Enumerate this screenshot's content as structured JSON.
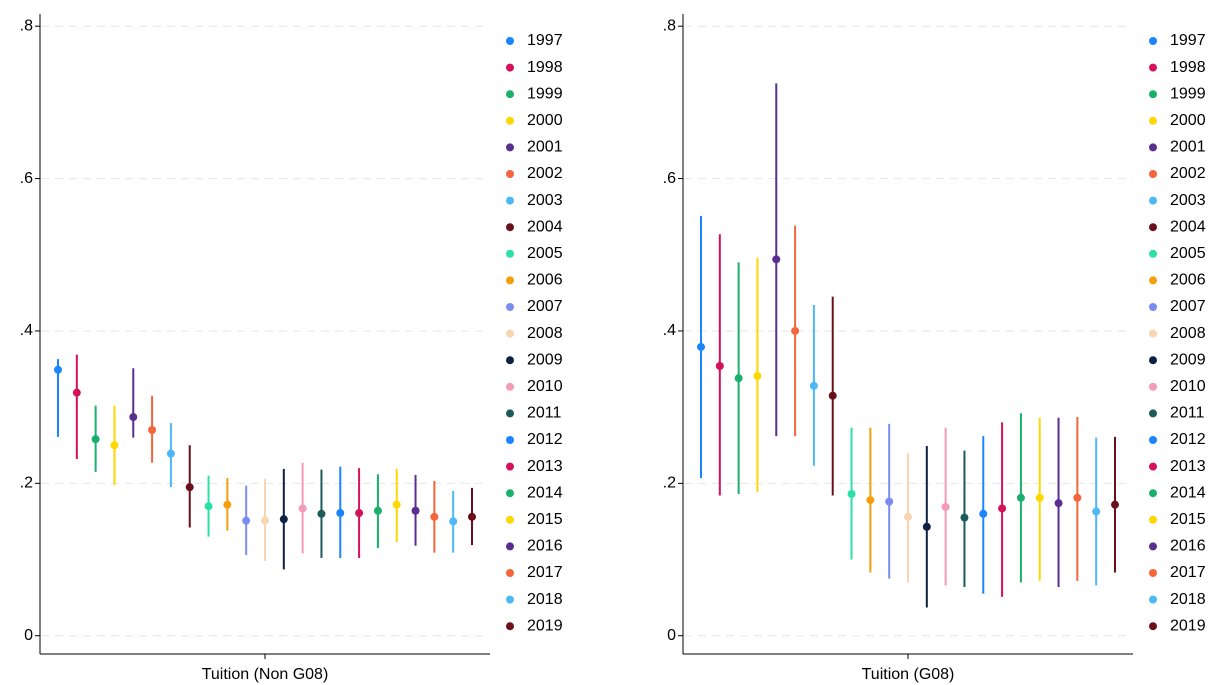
{
  "chart_data": [
    {
      "type": "errorbar",
      "categories": [
        "Tuition (Non G08)"
      ],
      "ylim": [
        -0.024,
        0.816
      ],
      "yticks": [
        0,
        {
          "value": 0.2,
          "label": ".2"
        },
        {
          "value": 0.4,
          "label": ".4"
        },
        {
          "value": 0.6,
          "label": ".6"
        },
        {
          "value": 0.8,
          "label": ".8"
        }
      ],
      "grid": true,
      "legend": "right",
      "series": [
        {
          "name": "1997",
          "color": "#1a85ff",
          "values": [
            0.349
          ],
          "low": [
            0.261
          ],
          "high": [
            0.363
          ]
        },
        {
          "name": "1998",
          "color": "#d41159",
          "values": [
            0.319
          ],
          "low": [
            0.232
          ],
          "high": [
            0.369
          ]
        },
        {
          "name": "1999",
          "color": "#1aaf6c",
          "values": [
            0.258
          ],
          "low": [
            0.215
          ],
          "high": [
            0.302
          ]
        },
        {
          "name": "2000",
          "color": "#ffd700",
          "values": [
            0.25
          ],
          "low": [
            0.198
          ],
          "high": [
            0.302
          ]
        },
        {
          "name": "2001",
          "color": "#5a2d91",
          "values": [
            0.287
          ],
          "low": [
            0.26
          ],
          "high": [
            0.351
          ]
        },
        {
          "name": "2002",
          "color": "#f5653a",
          "values": [
            0.27
          ],
          "low": [
            0.227
          ],
          "high": [
            0.315
          ]
        },
        {
          "name": "2003",
          "color": "#4cb8f5",
          "values": [
            0.239
          ],
          "low": [
            0.195
          ],
          "high": [
            0.279
          ]
        },
        {
          "name": "2004",
          "color": "#6b0f1a",
          "values": [
            0.195
          ],
          "low": [
            0.142
          ],
          "high": [
            0.25
          ]
        },
        {
          "name": "2005",
          "color": "#2de0a5",
          "values": [
            0.17
          ],
          "low": [
            0.13
          ],
          "high": [
            0.21
          ]
        },
        {
          "name": "2006",
          "color": "#f59e0b",
          "values": [
            0.172
          ],
          "low": [
            0.138
          ],
          "high": [
            0.207
          ]
        },
        {
          "name": "2007",
          "color": "#7b8cf0",
          "values": [
            0.151
          ],
          "low": [
            0.106
          ],
          "high": [
            0.197
          ]
        },
        {
          "name": "2008",
          "color": "#f8d5b0",
          "values": [
            0.151
          ],
          "low": [
            0.098
          ],
          "high": [
            0.206
          ]
        },
        {
          "name": "2009",
          "color": "#0d2240",
          "values": [
            0.153
          ],
          "low": [
            0.087
          ],
          "high": [
            0.219
          ]
        },
        {
          "name": "2010",
          "color": "#f59bb5",
          "values": [
            0.167
          ],
          "low": [
            0.108
          ],
          "high": [
            0.227
          ]
        },
        {
          "name": "2011",
          "color": "#1d5a5a",
          "values": [
            0.16
          ],
          "low": [
            0.102
          ],
          "high": [
            0.218
          ]
        },
        {
          "name": "2012",
          "color": "#1a85ff",
          "values": [
            0.161
          ],
          "low": [
            0.102
          ],
          "high": [
            0.222
          ]
        },
        {
          "name": "2013",
          "color": "#d41159",
          "values": [
            0.161
          ],
          "low": [
            0.102
          ],
          "high": [
            0.22
          ]
        },
        {
          "name": "2014",
          "color": "#1aaf6c",
          "values": [
            0.164
          ],
          "low": [
            0.115
          ],
          "high": [
            0.212
          ]
        },
        {
          "name": "2015",
          "color": "#ffd700",
          "values": [
            0.172
          ],
          "low": [
            0.123
          ],
          "high": [
            0.219
          ]
        },
        {
          "name": "2016",
          "color": "#5a2d91",
          "values": [
            0.164
          ],
          "low": [
            0.118
          ],
          "high": [
            0.211
          ]
        },
        {
          "name": "2017",
          "color": "#f5653a",
          "values": [
            0.156
          ],
          "low": [
            0.109
          ],
          "high": [
            0.203
          ]
        },
        {
          "name": "2018",
          "color": "#4cb8f5",
          "values": [
            0.15
          ],
          "low": [
            0.109
          ],
          "high": [
            0.19
          ]
        },
        {
          "name": "2019",
          "color": "#6b0f1a",
          "values": [
            0.156
          ],
          "low": [
            0.119
          ],
          "high": [
            0.194
          ]
        }
      ]
    },
    {
      "type": "errorbar",
      "categories": [
        "Tuition (G08)"
      ],
      "ylim": [
        -0.024,
        0.816
      ],
      "yticks": [
        0,
        {
          "value": 0.2,
          "label": ".2"
        },
        {
          "value": 0.4,
          "label": ".4"
        },
        {
          "value": 0.6,
          "label": ".6"
        },
        {
          "value": 0.8,
          "label": ".8"
        }
      ],
      "grid": true,
      "legend": "right",
      "series": [
        {
          "name": "1997",
          "color": "#1a85ff",
          "values": [
            0.379
          ],
          "low": [
            0.207
          ],
          "high": [
            0.551
          ]
        },
        {
          "name": "1998",
          "color": "#d41159",
          "values": [
            0.354
          ],
          "low": [
            0.184
          ],
          "high": [
            0.527
          ]
        },
        {
          "name": "1999",
          "color": "#1aaf6c",
          "values": [
            0.338
          ],
          "low": [
            0.186
          ],
          "high": [
            0.49
          ]
        },
        {
          "name": "2000",
          "color": "#ffd700",
          "values": [
            0.341
          ],
          "low": [
            0.189
          ],
          "high": [
            0.496
          ]
        },
        {
          "name": "2001",
          "color": "#5a2d91",
          "values": [
            0.494
          ],
          "low": [
            0.262
          ],
          "high": [
            0.725
          ]
        },
        {
          "name": "2002",
          "color": "#f5653a",
          "values": [
            0.4
          ],
          "low": [
            0.262
          ],
          "high": [
            0.538
          ]
        },
        {
          "name": "2003",
          "color": "#4cb8f5",
          "values": [
            0.328
          ],
          "low": [
            0.223
          ],
          "high": [
            0.434
          ]
        },
        {
          "name": "2004",
          "color": "#6b0f1a",
          "values": [
            0.315
          ],
          "low": [
            0.184
          ],
          "high": [
            0.445
          ]
        },
        {
          "name": "2005",
          "color": "#2de0a5",
          "values": [
            0.186
          ],
          "low": [
            0.1
          ],
          "high": [
            0.273
          ]
        },
        {
          "name": "2006",
          "color": "#f59e0b",
          "values": [
            0.178
          ],
          "low": [
            0.083
          ],
          "high": [
            0.273
          ]
        },
        {
          "name": "2007",
          "color": "#7b8cf0",
          "values": [
            0.176
          ],
          "low": [
            0.075
          ],
          "high": [
            0.278
          ]
        },
        {
          "name": "2008",
          "color": "#f8d5b0",
          "values": [
            0.156
          ],
          "low": [
            0.07
          ],
          "high": [
            0.24
          ]
        },
        {
          "name": "2009",
          "color": "#0d2240",
          "values": [
            0.143
          ],
          "low": [
            0.037
          ],
          "high": [
            0.249
          ]
        },
        {
          "name": "2010",
          "color": "#f59bb5",
          "values": [
            0.169
          ],
          "low": [
            0.066
          ],
          "high": [
            0.273
          ]
        },
        {
          "name": "2011",
          "color": "#1d5a5a",
          "values": [
            0.155
          ],
          "low": [
            0.064
          ],
          "high": [
            0.243
          ]
        },
        {
          "name": "2012",
          "color": "#1a85ff",
          "values": [
            0.16
          ],
          "low": [
            0.055
          ],
          "high": [
            0.262
          ]
        },
        {
          "name": "2013",
          "color": "#d41159",
          "values": [
            0.167
          ],
          "low": [
            0.051
          ],
          "high": [
            0.28
          ]
        },
        {
          "name": "2014",
          "color": "#1aaf6c",
          "values": [
            0.181
          ],
          "low": [
            0.07
          ],
          "high": [
            0.292
          ]
        },
        {
          "name": "2015",
          "color": "#ffd700",
          "values": [
            0.181
          ],
          "low": [
            0.072
          ],
          "high": [
            0.286
          ]
        },
        {
          "name": "2016",
          "color": "#5a2d91",
          "values": [
            0.174
          ],
          "low": [
            0.064
          ],
          "high": [
            0.286
          ]
        },
        {
          "name": "2017",
          "color": "#f5653a",
          "values": [
            0.181
          ],
          "low": [
            0.072
          ],
          "high": [
            0.287
          ]
        },
        {
          "name": "2018",
          "color": "#4cb8f5",
          "values": [
            0.163
          ],
          "low": [
            0.066
          ],
          "high": [
            0.26
          ]
        },
        {
          "name": "2019",
          "color": "#6b0f1a",
          "values": [
            0.172
          ],
          "low": [
            0.083
          ],
          "high": [
            0.261
          ]
        }
      ]
    }
  ]
}
